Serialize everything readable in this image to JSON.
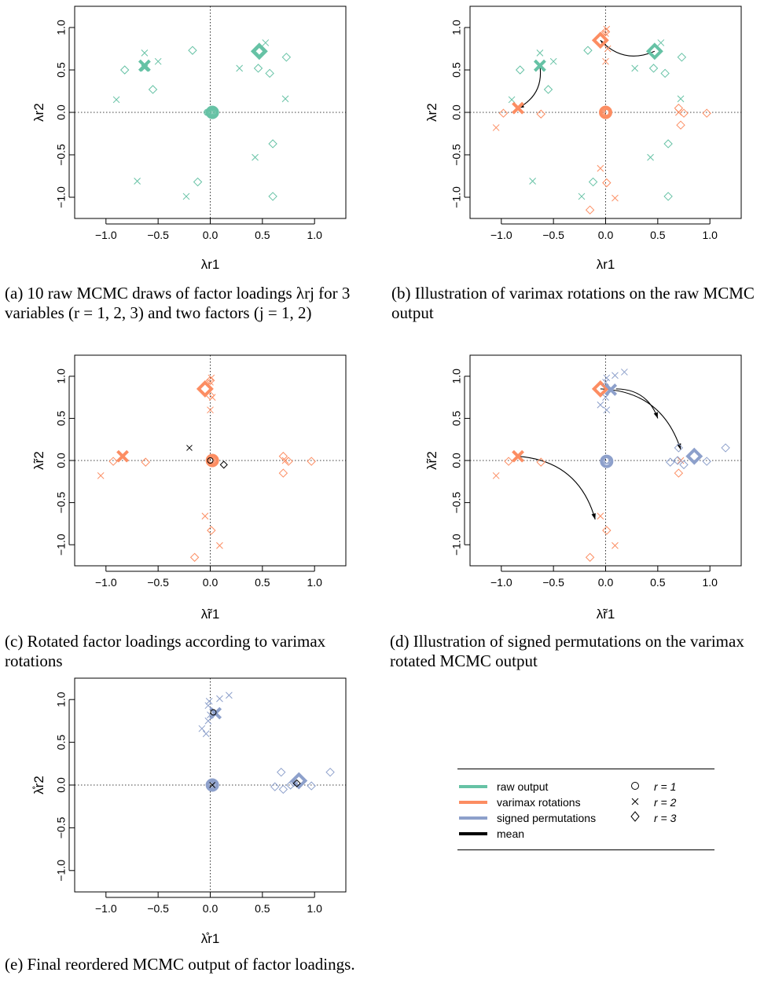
{
  "colors": {
    "raw": "#66c2a5",
    "varimax": "#fc8d62",
    "signed": "#8da0cb",
    "mean": "#000000",
    "trace": "#d9d9d9"
  },
  "captions": {
    "a": "(a) 10 raw MCMC draws of factor loadings λrj for 3 variables (r = 1, 2, 3) and two factors (j = 1, 2)",
    "b": "(b) Illustration of varimax rotations on the raw MCMC output",
    "c": "(c) Rotated factor loadings according to varimax rotations",
    "d": "(d) Illustration of signed permutations on the varimax rotated MCMC output",
    "e": "(e) Final reordered MCMC output of factor loadings."
  },
  "legend": {
    "lines": [
      {
        "label": "raw output",
        "color": "#66c2a5"
      },
      {
        "label": "varimax rotations",
        "color": "#fc8d62"
      },
      {
        "label": "signed permutations",
        "color": "#8da0cb"
      },
      {
        "label": "mean",
        "color": "#000000"
      }
    ],
    "symbols": [
      {
        "symbol": "circle",
        "label": "r = 1"
      },
      {
        "symbol": "cross",
        "label": "r = 2"
      },
      {
        "symbol": "diamond",
        "label": "r = 3"
      }
    ]
  },
  "chart_data": [
    {
      "type": "scatter",
      "panel": "a",
      "xlabel": "λr1",
      "ylabel": "λr2",
      "xlim": [
        -1.3,
        1.3
      ],
      "ylim": [
        -1.25,
        1.25
      ],
      "xticks": [
        "−1.0",
        "−0.5",
        "0.0",
        "0.5",
        "1.0"
      ],
      "yticks": [
        "−1.0",
        "−0.5",
        "0.0",
        "0.5",
        "1.0"
      ],
      "reference_lines": [
        0,
        0
      ],
      "series": [
        {
          "name": "raw output r = 1",
          "color": "#66c2a5",
          "symbol": "circle",
          "points": [
            [
              -0.03,
              0.0
            ],
            [
              -0.02,
              0.0
            ],
            [
              -0.01,
              0.0
            ],
            [
              0.0,
              0.0
            ],
            [
              0.0,
              0.0
            ],
            [
              0.01,
              0.0
            ],
            [
              0.02,
              0.0
            ],
            [
              0.03,
              0.0
            ],
            [
              0.02,
              0.0
            ],
            [
              0.01,
              0.0
            ]
          ],
          "mean": [
            0.02,
            0.0
          ]
        },
        {
          "name": "raw output r = 2",
          "color": "#66c2a5",
          "symbol": "cross",
          "points": [
            [
              -0.63,
              0.7
            ],
            [
              -0.5,
              0.6
            ],
            [
              -0.9,
              0.15
            ],
            [
              -0.7,
              -0.81
            ],
            [
              -0.23,
              -0.99
            ],
            [
              0.53,
              0.82
            ],
            [
              0.28,
              0.52
            ],
            [
              0.43,
              -0.53
            ],
            [
              0.72,
              0.16
            ],
            [
              -0.63,
              0.52
            ]
          ],
          "mean": [
            -0.63,
            0.55
          ]
        },
        {
          "name": "raw output r = 3",
          "color": "#66c2a5",
          "symbol": "diamond",
          "points": [
            [
              -0.82,
              0.5
            ],
            [
              -0.55,
              0.27
            ],
            [
              -0.17,
              0.73
            ],
            [
              -0.12,
              -0.82
            ],
            [
              0.46,
              0.52
            ],
            [
              0.57,
              0.46
            ],
            [
              0.73,
              0.65
            ],
            [
              0.6,
              -0.37
            ],
            [
              0.6,
              -0.99
            ],
            [
              0.47,
              0.72
            ]
          ],
          "mean": [
            0.47,
            0.72
          ]
        }
      ]
    },
    {
      "type": "scatter",
      "panel": "b",
      "xlabel": "λr1",
      "ylabel": "λr2",
      "xlim": [
        -1.3,
        1.3
      ],
      "ylim": [
        -1.25,
        1.25
      ],
      "xticks": [
        "−1.0",
        "−0.5",
        "0.0",
        "0.5",
        "1.0"
      ],
      "yticks": [
        "−1.0",
        "−0.5",
        "0.0",
        "0.5",
        "1.0"
      ],
      "series": [
        {
          "name": "raw output r = 2",
          "color": "#66c2a5",
          "symbol": "cross",
          "points": [
            [
              -0.63,
              0.7
            ],
            [
              -0.5,
              0.6
            ],
            [
              -0.9,
              0.15
            ],
            [
              -0.7,
              -0.81
            ],
            [
              -0.23,
              -0.99
            ],
            [
              0.53,
              0.82
            ],
            [
              0.28,
              0.52
            ],
            [
              0.43,
              -0.53
            ],
            [
              0.72,
              0.16
            ]
          ],
          "mean": [
            -0.63,
            0.55
          ]
        },
        {
          "name": "raw output r = 3",
          "color": "#66c2a5",
          "symbol": "diamond",
          "points": [
            [
              -0.82,
              0.5
            ],
            [
              -0.55,
              0.27
            ],
            [
              -0.17,
              0.73
            ],
            [
              -0.12,
              -0.82
            ],
            [
              0.46,
              0.52
            ],
            [
              0.57,
              0.46
            ],
            [
              0.73,
              0.65
            ],
            [
              0.6,
              -0.37
            ],
            [
              0.6,
              -0.99
            ]
          ],
          "mean": [
            0.47,
            0.72
          ]
        },
        {
          "name": "varimax r = 1",
          "color": "#fc8d62",
          "symbol": "circle",
          "points": [
            [
              0.0,
              0.0
            ],
            [
              0.01,
              0.0
            ],
            [
              0.02,
              0.0
            ]
          ],
          "mean": [
            0.0,
            0.0
          ]
        },
        {
          "name": "varimax r = 2",
          "color": "#fc8d62",
          "symbol": "cross",
          "points": [
            [
              -1.05,
              -0.18
            ],
            [
              0.01,
              0.98
            ],
            [
              0.0,
              0.93
            ],
            [
              0.02,
              0.75
            ],
            [
              0.0,
              0.6
            ],
            [
              -0.05,
              -0.66
            ],
            [
              0.09,
              -1.01
            ],
            [
              0.7,
              0.0
            ]
          ],
          "mean": [
            -0.84,
            0.05
          ]
        },
        {
          "name": "varimax r = 3",
          "color": "#fc8d62",
          "symbol": "diamond",
          "points": [
            [
              -0.98,
              -0.01
            ],
            [
              -0.62,
              -0.02
            ],
            [
              0.01,
              -0.83
            ],
            [
              -0.15,
              -1.15
            ],
            [
              0.7,
              0.05
            ],
            [
              0.72,
              -0.15
            ],
            [
              0.75,
              -0.01
            ],
            [
              0.97,
              -0.01
            ],
            [
              0.0,
              0.95
            ]
          ],
          "mean": [
            -0.05,
            0.85
          ]
        }
      ],
      "annotations": [
        {
          "type": "arrow",
          "from": [
            0.47,
            0.72
          ],
          "to": [
            -0.05,
            0.85
          ],
          "color": "#000000"
        },
        {
          "type": "arrow",
          "from": [
            -0.63,
            0.55
          ],
          "to": [
            -0.84,
            0.05
          ],
          "color": "#000000"
        }
      ]
    },
    {
      "type": "scatter",
      "panel": "c",
      "xlabel": "λ̃r1",
      "ylabel": "λ̃r2",
      "xlim": [
        -1.3,
        1.3
      ],
      "ylim": [
        -1.25,
        1.25
      ],
      "xticks": [
        "−1.0",
        "−0.5",
        "0.0",
        "0.5",
        "1.0"
      ],
      "yticks": [
        "−1.0",
        "−0.5",
        "0.0",
        "0.5",
        "1.0"
      ],
      "series": [
        {
          "name": "varimax r = 1",
          "color": "#fc8d62",
          "symbol": "circle",
          "points": [
            [
              0.0,
              0.0
            ],
            [
              0.01,
              0.0
            ],
            [
              0.02,
              0.0
            ],
            [
              0.0,
              0.01
            ]
          ],
          "mean": [
            0.02,
            0.0
          ]
        },
        {
          "name": "varimax r = 2",
          "color": "#fc8d62",
          "symbol": "cross",
          "points": [
            [
              -1.05,
              -0.18
            ],
            [
              0.01,
              0.98
            ],
            [
              0.0,
              0.93
            ],
            [
              0.02,
              0.75
            ],
            [
              0.0,
              0.6
            ],
            [
              -0.05,
              -0.66
            ],
            [
              0.09,
              -1.01
            ],
            [
              0.72,
              0.0
            ]
          ],
          "mean": [
            -0.84,
            0.05
          ]
        },
        {
          "name": "varimax r = 3",
          "color": "#fc8d62",
          "symbol": "diamond",
          "points": [
            [
              -0.93,
              -0.01
            ],
            [
              -0.62,
              -0.02
            ],
            [
              0.01,
              -0.83
            ],
            [
              -0.15,
              -1.15
            ],
            [
              0.7,
              0.05
            ],
            [
              0.7,
              -0.15
            ],
            [
              0.75,
              -0.01
            ],
            [
              0.97,
              -0.01
            ],
            [
              0.0,
              0.95
            ],
            [
              0.0,
              0.77
            ]
          ],
          "mean": [
            -0.05,
            0.85
          ]
        },
        {
          "name": "mean",
          "color": "#000000",
          "symbol": "mixed",
          "points": [
            [
              -0.2,
              0.15
            ],
            [
              0.0,
              0.0
            ],
            [
              0.13,
              -0.05
            ]
          ]
        }
      ]
    },
    {
      "type": "scatter",
      "panel": "d",
      "xlabel": "λ̃r1",
      "ylabel": "λ̃r2",
      "xlim": [
        -1.3,
        1.3
      ],
      "ylim": [
        -1.25,
        1.25
      ],
      "xticks": [
        "−1.0",
        "−0.5",
        "0.0",
        "0.5",
        "1.0"
      ],
      "yticks": [
        "−1.0",
        "−0.5",
        "0.0",
        "0.5",
        "1.0"
      ],
      "series": [
        {
          "name": "varimax r = 2",
          "color": "#fc8d62",
          "symbol": "cross",
          "points": [
            [
              -1.05,
              -0.18
            ],
            [
              -0.05,
              -0.66
            ],
            [
              0.09,
              -1.01
            ],
            [
              0.72,
              0.0
            ]
          ],
          "mean": [
            -0.84,
            0.05
          ]
        },
        {
          "name": "varimax r = 3",
          "color": "#fc8d62",
          "symbol": "diamond",
          "points": [
            [
              -0.93,
              -0.01
            ],
            [
              -0.62,
              -0.02
            ],
            [
              0.01,
              -0.83
            ],
            [
              -0.15,
              -1.15
            ],
            [
              0.7,
              -0.15
            ]
          ],
          "mean": [
            -0.05,
            0.85
          ]
        },
        {
          "name": "signed r = 1",
          "color": "#8da0cb",
          "symbol": "circle",
          "points": [
            [
              0.0,
              0.0
            ],
            [
              0.01,
              0.0
            ],
            [
              0.02,
              0.0
            ]
          ],
          "mean": [
            0.01,
            -0.01
          ]
        },
        {
          "name": "signed r = 2",
          "color": "#8da0cb",
          "symbol": "cross",
          "points": [
            [
              -0.05,
              0.66
            ],
            [
              0.01,
              0.6
            ],
            [
              0.0,
              0.75
            ],
            [
              0.0,
              0.93
            ],
            [
              0.01,
              0.98
            ],
            [
              0.09,
              1.01
            ],
            [
              0.18,
              1.05
            ]
          ],
          "mean": [
            0.05,
            0.84
          ]
        },
        {
          "name": "signed r = 3",
          "color": "#8da0cb",
          "symbol": "diamond",
          "points": [
            [
              0.62,
              -0.02
            ],
            [
              0.7,
              0.15
            ],
            [
              0.75,
              -0.05
            ],
            [
              0.97,
              -0.01
            ],
            [
              1.15,
              0.15
            ],
            [
              0.69,
              0.0
            ]
          ],
          "mean": [
            0.85,
            0.05
          ]
        }
      ],
      "annotations": [
        {
          "type": "arrow",
          "from": [
            -0.84,
            0.05
          ],
          "to": [
            -0.1,
            -0.7
          ],
          "color": "#000000"
        },
        {
          "type": "arrow",
          "from": [
            -0.05,
            0.85
          ],
          "to": [
            0.72,
            0.13
          ],
          "color": "#000000"
        },
        {
          "type": "arrow",
          "from": [
            0.1,
            0.85
          ],
          "to": [
            0.5,
            0.5
          ],
          "color": "#000000"
        }
      ]
    },
    {
      "type": "scatter",
      "panel": "e",
      "xlabel": "λ̊r1",
      "ylabel": "λ̊r2",
      "xlim": [
        -1.3,
        1.3
      ],
      "ylim": [
        -1.25,
        1.25
      ],
      "xticks": [
        "−1.0",
        "−0.5",
        "0.0",
        "0.5",
        "1.0"
      ],
      "yticks": [
        "−1.0",
        "−0.5",
        "0.0",
        "0.5",
        "1.0"
      ],
      "series": [
        {
          "name": "signed r = 1",
          "color": "#8da0cb",
          "symbol": "circle",
          "points": [
            [
              -0.01,
              0.01
            ],
            [
              0.0,
              0.0
            ],
            [
              0.01,
              0.0
            ],
            [
              0.02,
              0.0
            ],
            [
              0.0,
              0.02
            ]
          ],
          "mean": [
            0.02,
            0.0
          ]
        },
        {
          "name": "signed r = 2",
          "color": "#8da0cb",
          "symbol": "cross",
          "points": [
            [
              -0.08,
              0.66
            ],
            [
              -0.04,
              0.6
            ],
            [
              -0.02,
              0.75
            ],
            [
              -0.02,
              0.93
            ],
            [
              -0.01,
              0.98
            ],
            [
              0.09,
              1.01
            ],
            [
              0.18,
              1.05
            ],
            [
              0.0,
              0.82
            ]
          ],
          "mean": [
            0.05,
            0.84
          ]
        },
        {
          "name": "signed r = 3",
          "color": "#8da0cb",
          "symbol": "diamond",
          "points": [
            [
              0.62,
              -0.02
            ],
            [
              0.68,
              0.15
            ],
            [
              0.7,
              -0.05
            ],
            [
              0.77,
              0.0
            ],
            [
              0.8,
              0.03
            ],
            [
              0.97,
              -0.01
            ],
            [
              1.15,
              0.15
            ]
          ],
          "mean": [
            0.85,
            0.05
          ]
        },
        {
          "name": "mean",
          "color": "#000000",
          "symbol": "mixed",
          "points": [
            [
              0.02,
              0.0
            ],
            [
              0.03,
              0.85
            ],
            [
              0.83,
              0.02
            ]
          ]
        }
      ]
    }
  ]
}
